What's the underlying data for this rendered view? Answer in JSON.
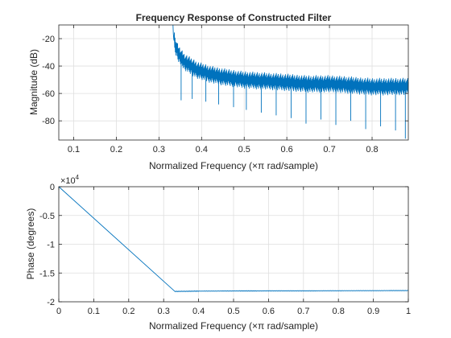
{
  "chart_data": [
    {
      "type": "line",
      "title": "Frequency Response of Constructed Filter",
      "xlabel": "Normalized Frequency  (×π rad/sample)",
      "ylabel": "Magnitude (dB)",
      "xlim": [
        0.065,
        0.885
      ],
      "ylim": [
        -94,
        -10
      ],
      "xticks": [
        0.1,
        0.2,
        0.3,
        0.4,
        0.5,
        0.6,
        0.7,
        0.8
      ],
      "yticks": [
        -80,
        -60,
        -40,
        -20
      ],
      "grid": true,
      "color": "#0072bd",
      "series": [
        {
          "x": [
            0.333,
            0.334,
            0.335,
            0.336,
            0.337,
            0.338,
            0.339,
            0.34,
            0.342,
            0.344,
            0.346,
            0.348,
            0.35,
            0.355,
            0.36,
            0.37,
            0.38,
            0.39,
            0.4,
            0.42,
            0.45,
            0.5,
            0.55,
            0.6,
            0.65,
            0.7,
            0.75,
            0.8,
            0.85,
            0.885
          ],
          "y": [
            -10,
            -18,
            -22,
            -20,
            -24,
            -26,
            -25,
            -27,
            -28,
            -30,
            -31,
            -32,
            -33,
            -35,
            -37,
            -39,
            -41,
            -43,
            -44,
            -46,
            -48,
            -50,
            -51,
            -52,
            -53,
            -53,
            -54,
            -55,
            -55,
            -55
          ]
        }
      ],
      "nulls": [
        {
          "x": 0.352,
          "y": -65
        },
        {
          "x": 0.378,
          "y": -64
        },
        {
          "x": 0.41,
          "y": -66
        },
        {
          "x": 0.44,
          "y": -68
        },
        {
          "x": 0.475,
          "y": -70
        },
        {
          "x": 0.505,
          "y": -72
        },
        {
          "x": 0.54,
          "y": -74
        },
        {
          "x": 0.575,
          "y": -76
        },
        {
          "x": 0.61,
          "y": -78
        },
        {
          "x": 0.645,
          "y": -82
        },
        {
          "x": 0.68,
          "y": -79
        },
        {
          "x": 0.715,
          "y": -83
        },
        {
          "x": 0.75,
          "y": -80
        },
        {
          "x": 0.785,
          "y": -86
        },
        {
          "x": 0.82,
          "y": -84
        },
        {
          "x": 0.855,
          "y": -87
        },
        {
          "x": 0.878,
          "y": -93
        }
      ]
    },
    {
      "type": "line",
      "title": "",
      "xlabel": "Normalized Frequency  (×π rad/sample)",
      "ylabel": "Phase (degrees)",
      "exponent": "×10",
      "exponent_power": "4",
      "xlim": [
        0,
        1
      ],
      "ylim": [
        -2,
        0
      ],
      "xticks": [
        0,
        0.1,
        0.2,
        0.3,
        0.4,
        0.5,
        0.6,
        0.7,
        0.8,
        0.9,
        1
      ],
      "yticks": [
        -2,
        -1.5,
        -1,
        -0.5,
        0
      ],
      "grid": true,
      "color": "#0072bd",
      "series": [
        {
          "x": [
            0,
            0.333,
            0.4,
            0.5,
            0.6,
            0.7,
            0.8,
            0.9,
            1.0
          ],
          "y": [
            0,
            -1.82,
            -1.815,
            -1.812,
            -1.81,
            -1.81,
            -1.808,
            -1.807,
            -1.805
          ]
        }
      ]
    }
  ]
}
